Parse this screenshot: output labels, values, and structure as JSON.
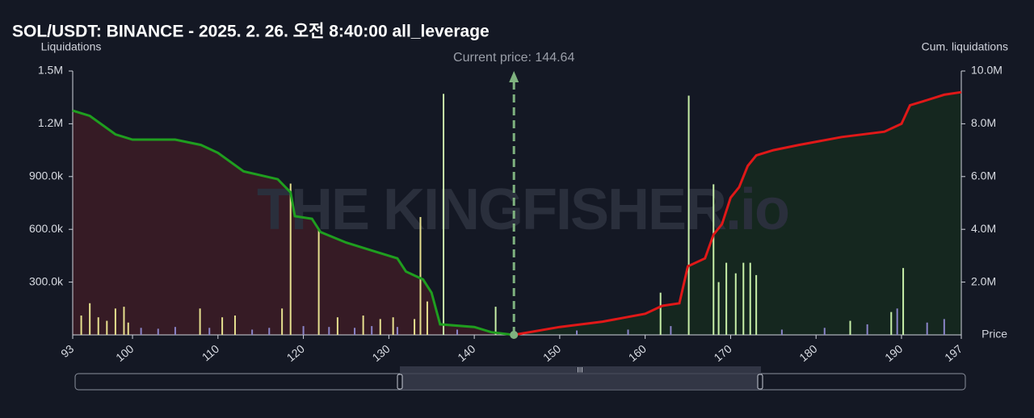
{
  "chart_data": {
    "type": "bar",
    "title": "SOL/USDT: BINANCE - 2025. 2. 26. 오전 8:40:00 all_leverage",
    "y_label": "Liquidations",
    "y2_label": "Cum. liquidations",
    "x_label": "Price",
    "watermark": "THE KINGFISHER.io",
    "current_price": 144.64,
    "current_price_label": "Current price: 144.64",
    "xlim": [
      93,
      197
    ],
    "xticks": [
      93,
      100,
      110,
      120,
      130,
      140,
      150,
      160,
      170,
      180,
      190,
      197
    ],
    "ylim": [
      0,
      1500000
    ],
    "yticks": [
      {
        "value": 300000,
        "label": "300.0k"
      },
      {
        "value": 600000,
        "label": "600.0k"
      },
      {
        "value": 900000,
        "label": "900.0k"
      },
      {
        "value": 1200000,
        "label": "1.2M"
      },
      {
        "value": 1500000,
        "label": "1.5M"
      }
    ],
    "y2lim": [
      0,
      10000000
    ],
    "y2ticks": [
      {
        "value": 2000000,
        "label": "2.0M"
      },
      {
        "value": 4000000,
        "label": "4.0M"
      },
      {
        "value": 6000000,
        "label": "6.0M"
      },
      {
        "value": 8000000,
        "label": "8.0M"
      },
      {
        "value": 10000000,
        "label": "10.0M"
      }
    ],
    "bar_series": [
      {
        "color": "#e6e08e",
        "x": [
          94,
          95,
          96,
          97,
          98,
          99,
          99.5,
          107.9,
          110.5,
          112,
          117.5,
          118.5,
          121.8,
          124,
          127,
          129,
          130.5,
          133,
          133.7,
          134.5
        ],
        "values": [
          110000,
          180000,
          100000,
          80000,
          150000,
          160000,
          70000,
          150000,
          100000,
          110000,
          150000,
          860000,
          600000,
          100000,
          110000,
          90000,
          100000,
          90000,
          670000,
          190000
        ]
      },
      {
        "color": "#c8f0a8",
        "x": [
          136.4,
          142.5,
          161.8,
          165.1,
          168,
          168.6,
          169.5,
          170.6,
          171.5,
          172.3,
          173,
          184,
          188.8,
          190.2
        ],
        "values": [
          1370000,
          160000,
          240000,
          1360000,
          856000,
          300000,
          410000,
          350000,
          410000,
          410000,
          340000,
          80000,
          130000,
          380000
        ]
      },
      {
        "color": "#8a84c8",
        "x": [
          101,
          103,
          105,
          109,
          114,
          116,
          120,
          123,
          126,
          128,
          131,
          138,
          152,
          158,
          163,
          176,
          181,
          186,
          189.5,
          193,
          195
        ],
        "values": [
          40000,
          35000,
          45000,
          40000,
          30000,
          40000,
          50000,
          45000,
          40000,
          50000,
          45000,
          30000,
          25000,
          30000,
          50000,
          30000,
          40000,
          60000,
          150000,
          70000,
          90000
        ]
      }
    ],
    "series": [
      {
        "color": "#1f9e1f",
        "fill": "#3a1c26",
        "axis": "y2",
        "x": [
          93,
          95,
          98,
          100,
          105,
          108,
          110,
          113,
          117,
          118.5,
          119,
          121,
          122,
          125,
          128,
          131,
          132,
          134,
          135,
          136,
          140,
          142,
          144.64
        ],
        "values": [
          8500000,
          8300000,
          7600000,
          7400000,
          7400000,
          7200000,
          6900000,
          6200000,
          5900000,
          5400000,
          4500000,
          4400000,
          3900000,
          3500000,
          3200000,
          2900000,
          2400000,
          2100000,
          1600000,
          400000,
          300000,
          100000,
          0
        ]
      },
      {
        "color": "#e01818",
        "fill": "#15291f",
        "axis": "y2",
        "x": [
          144.64,
          150,
          155,
          160,
          162,
          164,
          165,
          167,
          168,
          169,
          170,
          171,
          172,
          173,
          175,
          178,
          183,
          188,
          190,
          191,
          193,
          195,
          197
        ],
        "values": [
          0,
          300000,
          500000,
          800000,
          1100000,
          1200000,
          2600000,
          2900000,
          3800000,
          4200000,
          5200000,
          5600000,
          6400000,
          6800000,
          7000000,
          7200000,
          7500000,
          7700000,
          8000000,
          8700000,
          8900000,
          9100000,
          9200000
        ]
      }
    ]
  }
}
